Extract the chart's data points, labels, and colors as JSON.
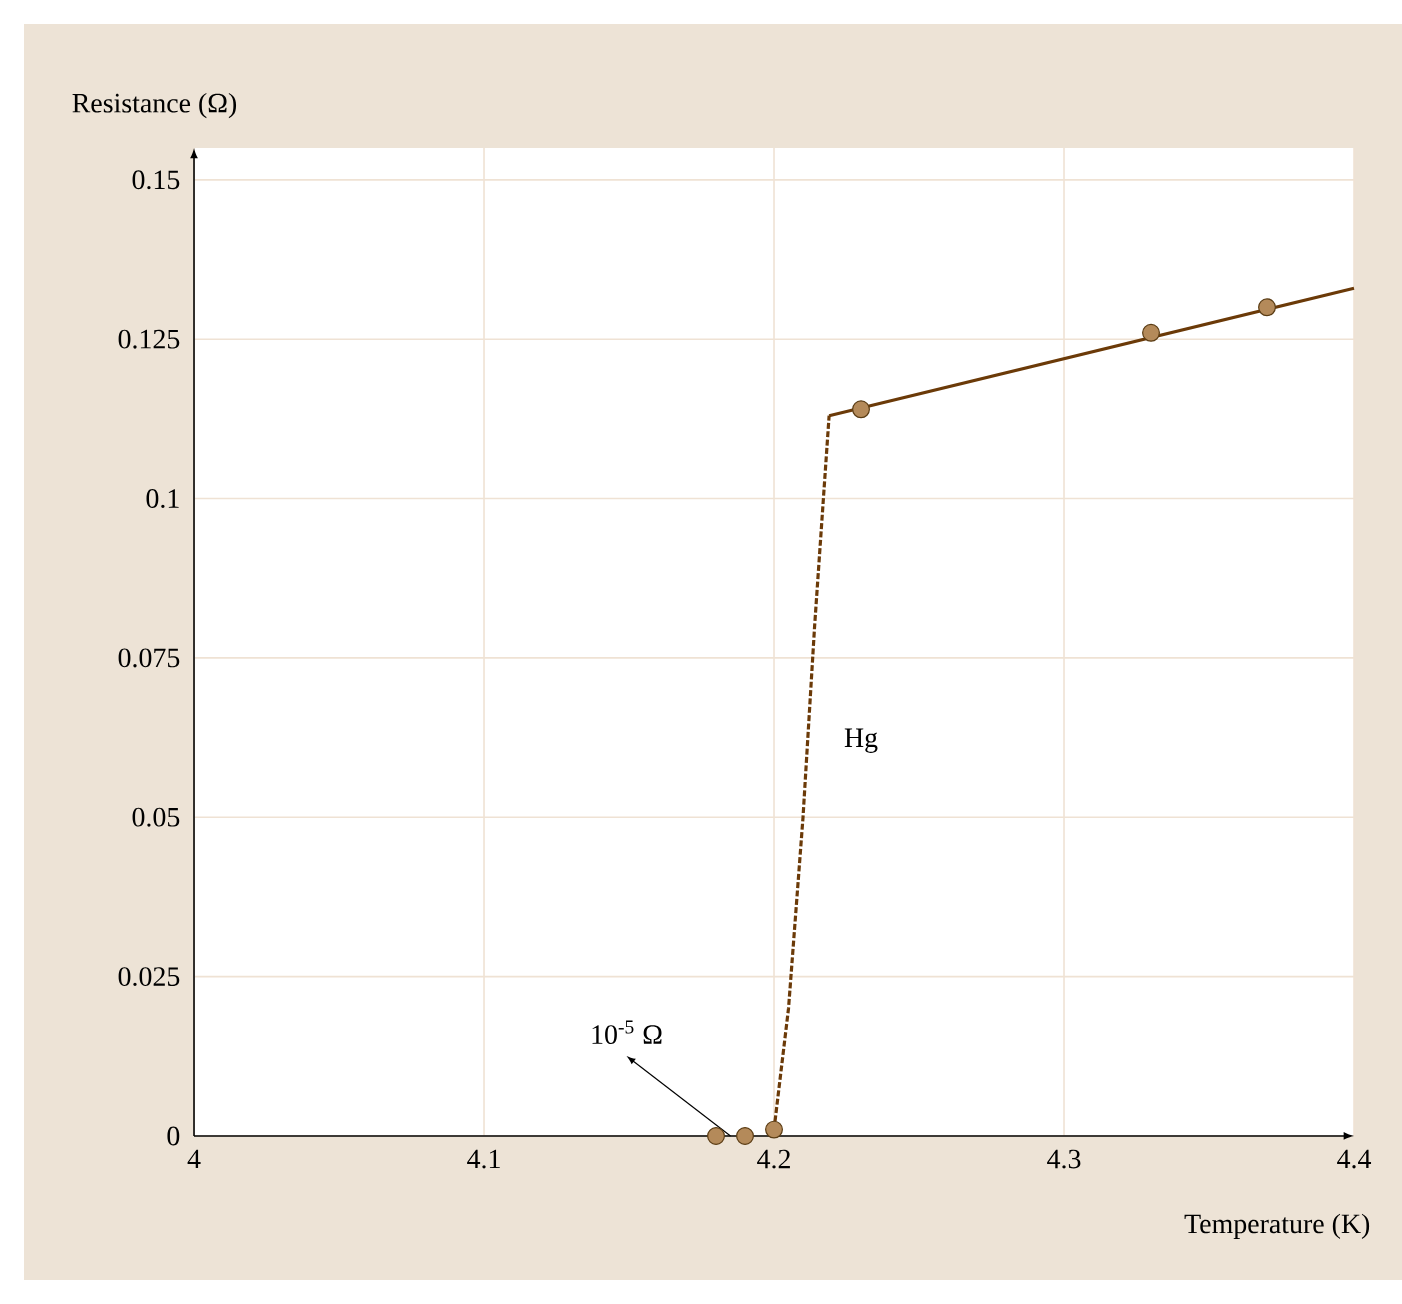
{
  "chart_data": {
    "type": "line",
    "xlabel": "Temperature (K)",
    "ylabel": "Resistance (Ω)",
    "xlim": [
      4,
      4.4
    ],
    "ylim": [
      0,
      0.155
    ],
    "xticks": [
      4,
      4.1,
      4.2,
      4.3,
      4.4
    ],
    "yticks": [
      0,
      0.025,
      0.05,
      0.075,
      0.1,
      0.125,
      0.15
    ],
    "grid": true,
    "series": [
      {
        "x": [
          4.2,
          4.205,
          4.21,
          4.214,
          4.219
        ],
        "values": [
          0.001,
          0.02,
          0.05,
          0.08,
          0.113
        ],
        "color": "#6b3a08",
        "line_style": "dashed"
      },
      {
        "x": [
          4.219,
          4.4
        ],
        "values": [
          0.113,
          0.133
        ],
        "color": "#6b3a08",
        "line_style": "solid"
      },
      {
        "type": "scatter",
        "x": [
          4.18,
          4.19,
          4.2,
          4.23,
          4.33,
          4.37
        ],
        "values": [
          0,
          0,
          0.001,
          0.114,
          0.126,
          0.13
        ],
        "color": "#b48a5a",
        "marker": "circle"
      }
    ],
    "annotations": [
      {
        "text": "10$^{-5}$ Ω",
        "x": 4.185,
        "y": 0
      },
      "Hg"
    ]
  }
}
